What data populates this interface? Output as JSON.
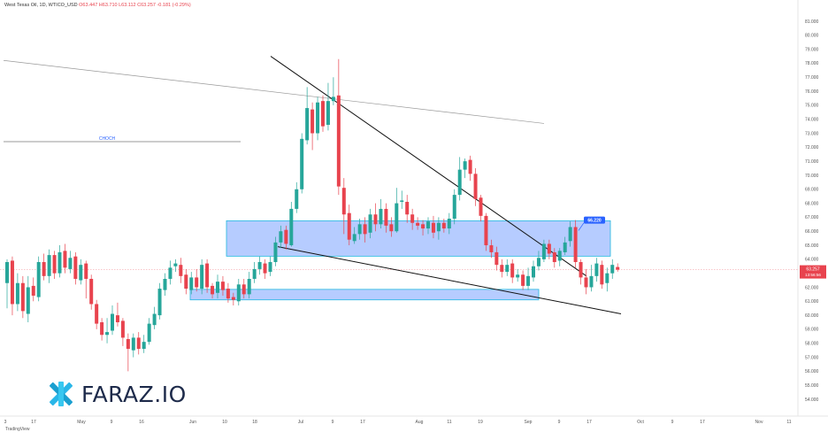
{
  "legend": {
    "symbol": "West Texas Oil, 1D, WTICO_USD",
    "open": "O63.447",
    "high": "H63.710",
    "low": "L63.112",
    "close": "C63.257",
    "change": "-0.181 (-0.29%)"
  },
  "watermark": {
    "text": "FARAZ.IO"
  },
  "brand": "TradingView",
  "colors": {
    "up": "#26a69a",
    "down": "#e8434e",
    "zone": "#7aa3ff",
    "label": "#2962ff"
  },
  "chart_data": {
    "type": "candlestick",
    "y_axis": {
      "min": 54.0,
      "max": 81.0,
      "side": "right",
      "ticks": [
        "81.000",
        "80.000",
        "79.000",
        "78.000",
        "77.000",
        "76.000",
        "75.000",
        "74.000",
        "73.000",
        "72.000",
        "71.000",
        "70.000",
        "69.000",
        "68.000",
        "67.000",
        "66.000",
        "65.000",
        "64.000",
        "63.000",
        "62.000",
        "61.000",
        "60.000",
        "59.000",
        "58.000",
        "57.000",
        "56.000",
        "55.000",
        "54.000"
      ]
    },
    "x_axis": {
      "labels": [
        "3",
        "17",
        "May",
        "9",
        "16",
        "Jun",
        "10",
        "18",
        "Jul",
        "9",
        "17",
        "Aug",
        "11",
        "19",
        "Sep",
        "9",
        "17",
        "Oct",
        "9",
        "17",
        "Nov",
        "11"
      ]
    },
    "last_price": {
      "value": 63.257,
      "label": "63.257",
      "countdown": "13:56:56"
    },
    "zone_label": "66.220",
    "annotation": "CHOCH",
    "candles": [
      [
        62,
        63.8,
        62.3,
        64.0,
        60.5
      ],
      [
        63.8,
        60.8,
        63.9,
        64.2,
        60.0
      ],
      [
        60.8,
        62.3,
        60.8,
        63.0,
        60.3
      ],
      [
        62.3,
        60.3,
        62.3,
        62.8,
        59.8
      ],
      [
        60.3,
        62.0,
        60.1,
        62.8,
        59.5
      ],
      [
        62.0,
        61.4,
        62.1,
        62.7,
        61.0
      ],
      [
        61.4,
        63.8,
        61.3,
        64.2,
        61.0
      ],
      [
        63.8,
        62.8,
        63.8,
        64.4,
        62.5
      ],
      [
        62.8,
        64.3,
        62.8,
        64.7,
        62.3
      ],
      [
        64.3,
        63.0,
        64.3,
        64.6,
        62.6
      ],
      [
        63.0,
        64.5,
        63.0,
        65.0,
        62.7
      ],
      [
        64.5,
        63.4,
        64.6,
        65.1,
        63.0
      ],
      [
        63.4,
        64.1,
        63.3,
        64.6,
        63.0
      ],
      [
        64.1,
        62.6,
        64.2,
        64.5,
        62.2
      ],
      [
        62.6,
        63.6,
        62.5,
        64.0,
        62.2
      ],
      [
        63.6,
        62.6,
        63.7,
        63.9,
        61.2
      ],
      [
        62.6,
        60.8,
        62.6,
        62.9,
        60.4
      ],
      [
        60.8,
        59.4,
        60.8,
        61.1,
        59.0
      ],
      [
        59.4,
        58.6,
        59.5,
        59.8,
        58.2
      ],
      [
        58.6,
        58.8,
        58.6,
        59.8,
        58.0
      ],
      [
        58.8,
        60.1,
        58.9,
        60.7,
        58.6
      ],
      [
        60.1,
        59.5,
        60.0,
        60.9,
        59.2
      ],
      [
        59.5,
        58.4,
        59.6,
        59.8,
        57.8
      ],
      [
        58.4,
        57.6,
        58.3,
        58.7,
        56.0
      ],
      [
        57.6,
        58.4,
        57.5,
        58.7,
        57.0
      ],
      [
        58.4,
        57.6,
        58.4,
        58.8,
        57.2
      ],
      [
        57.6,
        58.1,
        57.6,
        58.6,
        57.3
      ],
      [
        58.1,
        59.4,
        58.1,
        59.8,
        57.9
      ],
      [
        59.4,
        60.1,
        59.3,
        60.6,
        59.0
      ],
      [
        60.1,
        61.9,
        60.0,
        62.3,
        59.7
      ],
      [
        61.9,
        62.6,
        61.8,
        63.0,
        61.4
      ],
      [
        62.6,
        63.4,
        62.6,
        63.9,
        62.2
      ],
      [
        63.4,
        63.7,
        63.5,
        64.0,
        63.1
      ],
      [
        63.7,
        62.8,
        63.6,
        64.1,
        62.3
      ],
      [
        62.8,
        61.9,
        62.9,
        63.3,
        61.5
      ],
      [
        61.9,
        62.7,
        61.8,
        63.1,
        61.5
      ],
      [
        62.7,
        62.0,
        62.7,
        63.3,
        61.7
      ],
      [
        62.0,
        63.6,
        61.9,
        64.0,
        61.5
      ],
      [
        63.6,
        62.0,
        63.7,
        64.0,
        61.6
      ],
      [
        62.0,
        61.5,
        62.1,
        62.3,
        61.2
      ],
      [
        61.5,
        62.4,
        61.6,
        62.9,
        61.2
      ],
      [
        62.4,
        61.8,
        62.4,
        62.8,
        61.4
      ],
      [
        61.8,
        61.2,
        61.9,
        62.3,
        60.9
      ],
      [
        61.2,
        61.1,
        61.3,
        61.6,
        60.7
      ],
      [
        61.1,
        62.2,
        61.0,
        62.6,
        60.7
      ],
      [
        62.2,
        61.5,
        62.2,
        62.6,
        61.2
      ],
      [
        61.5,
        62.6,
        61.5,
        63.1,
        61.2
      ],
      [
        62.6,
        63.3,
        62.6,
        63.8,
        62.3
      ],
      [
        63.3,
        63.8,
        63.3,
        64.2,
        62.9
      ],
      [
        63.8,
        63.0,
        63.7,
        64.0,
        62.6
      ],
      [
        63.0,
        63.8,
        63.1,
        64.2,
        62.8
      ],
      [
        63.8,
        65.2,
        63.8,
        65.6,
        63.5
      ],
      [
        65.2,
        66.0,
        65.2,
        66.4,
        64.8
      ],
      [
        66.0,
        65.1,
        66.1,
        66.4,
        64.7
      ],
      [
        65.1,
        67.6,
        65.0,
        68.1,
        64.9
      ],
      [
        67.6,
        69.0,
        67.6,
        69.5,
        67.3
      ],
      [
        69.0,
        72.6,
        69.0,
        73.0,
        68.7
      ],
      [
        72.6,
        74.8,
        72.5,
        76.3,
        72.2
      ],
      [
        74.8,
        73.0,
        74.7,
        75.2,
        71.8
      ],
      [
        73.0,
        75.2,
        73.0,
        75.6,
        72.5
      ],
      [
        75.2,
        73.5,
        75.3,
        75.7,
        73.1
      ],
      [
        73.5,
        75.3,
        73.6,
        76.6,
        73.2
      ],
      [
        75.3,
        75.6,
        75.3,
        77.0,
        75.0
      ],
      [
        75.6,
        69.2,
        75.7,
        78.3,
        68.6
      ],
      [
        69.2,
        67.2,
        69.1,
        69.8,
        65.8
      ],
      [
        67.2,
        65.4,
        67.3,
        67.9,
        65.0
      ],
      [
        65.4,
        65.8,
        65.3,
        66.3,
        65.1
      ],
      [
        65.8,
        66.5,
        65.8,
        66.9,
        65.4
      ],
      [
        66.5,
        65.8,
        66.5,
        67.0,
        65.2
      ],
      [
        65.8,
        67.2,
        65.9,
        67.6,
        65.5
      ],
      [
        67.2,
        66.5,
        67.2,
        68.0,
        66.0
      ],
      [
        66.5,
        67.6,
        66.5,
        68.3,
        66.2
      ],
      [
        67.6,
        66.4,
        67.6,
        68.0,
        65.9
      ],
      [
        66.4,
        66.0,
        66.5,
        67.0,
        65.6
      ],
      [
        66.0,
        68.0,
        66.0,
        69.1,
        65.9
      ],
      [
        68.0,
        68.2,
        68.1,
        68.9,
        67.6
      ],
      [
        68.2,
        67.2,
        68.1,
        68.6,
        66.6
      ],
      [
        67.2,
        66.6,
        67.2,
        67.6,
        66.1
      ],
      [
        66.6,
        66.4,
        66.6,
        67.0,
        66.1
      ],
      [
        66.4,
        66.2,
        66.5,
        66.8,
        65.7
      ],
      [
        66.2,
        66.7,
        66.2,
        67.0,
        65.8
      ],
      [
        66.7,
        65.9,
        66.6,
        67.1,
        65.5
      ],
      [
        65.9,
        66.6,
        66.0,
        67.0,
        65.4
      ],
      [
        66.6,
        66.2,
        66.6,
        66.9,
        65.9
      ],
      [
        66.2,
        66.9,
        66.2,
        67.3,
        65.8
      ],
      [
        66.9,
        68.6,
        66.9,
        69.0,
        66.5
      ],
      [
        68.6,
        70.4,
        68.6,
        71.3,
        68.2
      ],
      [
        70.4,
        71.0,
        70.4,
        71.2,
        69.8
      ],
      [
        71.0,
        70.1,
        71.1,
        71.4,
        69.6
      ],
      [
        70.1,
        68.3,
        70.1,
        70.5,
        67.8
      ],
      [
        68.3,
        67.1,
        68.4,
        68.6,
        66.7
      ],
      [
        67.1,
        65.0,
        67.1,
        67.3,
        64.6
      ],
      [
        65.0,
        64.5,
        65.0,
        65.4,
        64.1
      ],
      [
        64.5,
        63.6,
        64.5,
        64.9,
        63.2
      ],
      [
        63.6,
        63.1,
        63.6,
        64.0,
        62.7
      ],
      [
        63.1,
        63.6,
        63.1,
        64.0,
        62.8
      ],
      [
        63.6,
        62.7,
        63.7,
        64.0,
        62.3
      ],
      [
        62.7,
        62.9,
        62.7,
        63.3,
        62.4
      ],
      [
        62.9,
        62.1,
        62.9,
        63.2,
        61.8
      ],
      [
        62.1,
        62.8,
        62.1,
        63.4,
        61.8
      ],
      [
        62.8,
        63.5,
        62.7,
        63.9,
        62.4
      ],
      [
        63.5,
        64.1,
        63.5,
        64.6,
        63.2
      ],
      [
        64.1,
        65.1,
        64.0,
        65.4,
        63.8
      ],
      [
        65.1,
        64.4,
        65.1,
        65.4,
        64.0
      ],
      [
        64.4,
        63.8,
        64.5,
        64.8,
        63.4
      ],
      [
        63.8,
        64.6,
        63.9,
        64.8,
        63.5
      ],
      [
        64.6,
        65.2,
        64.5,
        65.6,
        64.3
      ],
      [
        65.2,
        66.3,
        65.3,
        66.7,
        64.9
      ],
      [
        66.3,
        63.8,
        66.3,
        66.8,
        63.4
      ],
      [
        63.8,
        62.7,
        63.8,
        64.0,
        62.2
      ],
      [
        62.7,
        62.0,
        62.7,
        63.3,
        61.5
      ],
      [
        62.0,
        62.8,
        62.0,
        63.6,
        61.7
      ],
      [
        62.8,
        63.7,
        62.8,
        64.1,
        62.4
      ],
      [
        63.7,
        62.2,
        63.6,
        63.9,
        61.9
      ],
      [
        62.2,
        63.0,
        62.3,
        63.4,
        61.7
      ],
      [
        63.0,
        63.6,
        63.0,
        64.0,
        62.6
      ],
      [
        63.447,
        63.257,
        63.447,
        63.71,
        63.112
      ]
    ]
  }
}
